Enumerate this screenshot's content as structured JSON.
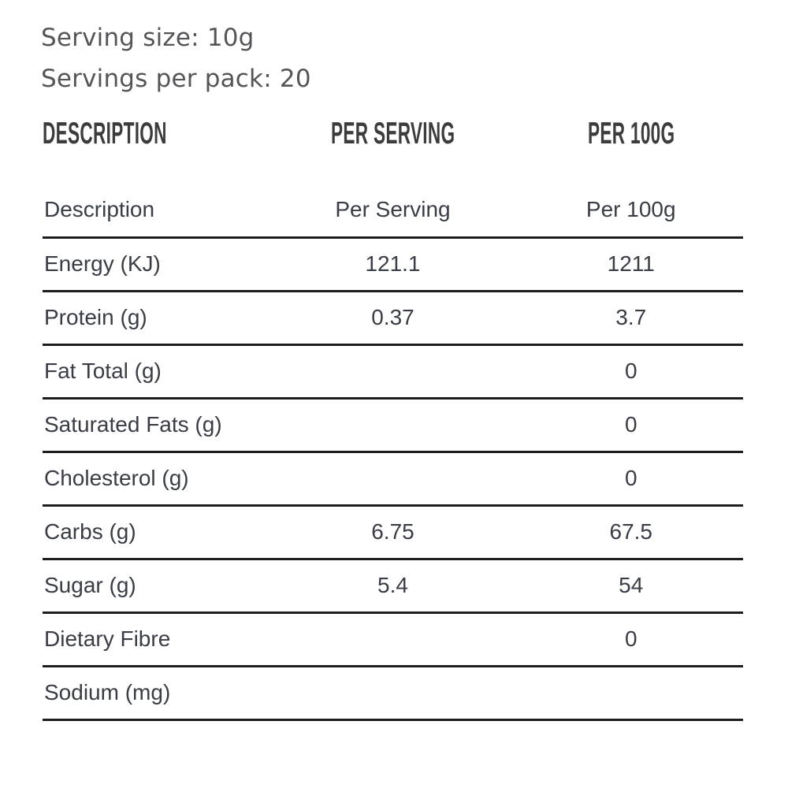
{
  "panel": {
    "serving_size": "Serving size: 10g",
    "servings_per_pack": "Servings per pack: 20"
  },
  "table": {
    "display_header": {
      "description": "DESCRIPTION",
      "per_serving": "PER SERVING",
      "per_100g": "PER 100G"
    },
    "sub_header": {
      "description": "Description",
      "per_serving": "Per Serving",
      "per_100g": "Per 100g"
    },
    "rows": [
      {
        "label": "Energy (KJ)",
        "per_serving": "121.1",
        "per_100g": "1211"
      },
      {
        "label": "Protein (g)",
        "per_serving": "0.37",
        "per_100g": "3.7"
      },
      {
        "label": "Fat Total (g)",
        "per_serving": "",
        "per_100g": "0"
      },
      {
        "label": "Saturated Fats (g)",
        "per_serving": "",
        "per_100g": "0"
      },
      {
        "label": "Cholesterol (g)",
        "per_serving": "",
        "per_100g": "0"
      },
      {
        "label": "Carbs (g)",
        "per_serving": "6.75",
        "per_100g": "67.5"
      },
      {
        "label": "Sugar (g)",
        "per_serving": "5.4",
        "per_100g": "54"
      },
      {
        "label": "Dietary Fibre",
        "per_serving": "",
        "per_100g": "0"
      },
      {
        "label": "Sodium (mg)",
        "per_serving": "",
        "per_100g": ""
      }
    ]
  },
  "colors": {
    "background": "#ffffff",
    "top_text": "#565458",
    "display_header_text": "#3c3c3c",
    "table_text": "#393d45",
    "rule": "#1e1e1e"
  }
}
